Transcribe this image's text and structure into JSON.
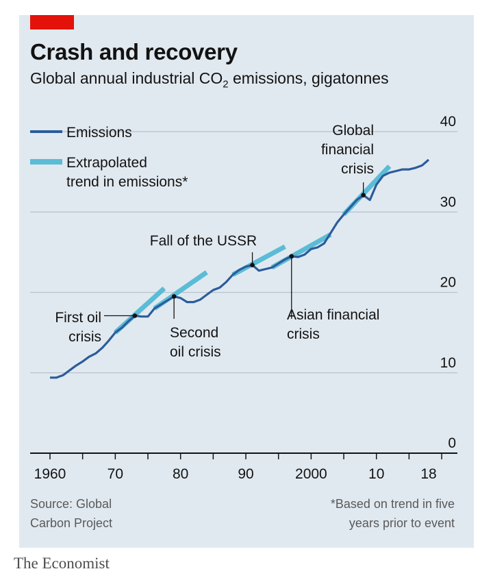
{
  "header": {
    "title": "Crash and recovery",
    "subtitle_main": "Global annual industrial CO",
    "subtitle_sub": "2",
    "subtitle_rest": " emissions, gigatonnes"
  },
  "colors": {
    "emissions": "#2b5c9c",
    "trend": "#5bbcd6",
    "accent": "#e3120b",
    "background": "#e1e9f0"
  },
  "chart_data": {
    "type": "line",
    "title": "Crash and recovery",
    "subtitle": "Global annual industrial CO2 emissions, gigatonnes",
    "xlim": [
      1960,
      2018
    ],
    "ylim": [
      0,
      40
    ],
    "x_ticks": [
      1960,
      1970,
      1980,
      1990,
      2000,
      2010,
      2018
    ],
    "x_tick_labels": [
      "1960",
      "70",
      "80",
      "90",
      "2000",
      "10",
      "18"
    ],
    "y_ticks": [
      0,
      10,
      20,
      30,
      40
    ],
    "y_tick_labels": [
      "0",
      "10",
      "20",
      "30",
      "40"
    ],
    "grid": "horizontal",
    "legend": "top-left",
    "legend_labels": {
      "emissions": "Emissions",
      "trend_line1": "Extrapolated",
      "trend_line2": "trend in emissions*"
    },
    "series": [
      {
        "name": "Emissions",
        "x": [
          1960,
          1961,
          1962,
          1963,
          1964,
          1965,
          1966,
          1967,
          1968,
          1969,
          1970,
          1971,
          1972,
          1973,
          1974,
          1975,
          1976,
          1977,
          1978,
          1979,
          1980,
          1981,
          1982,
          1983,
          1984,
          1985,
          1986,
          1987,
          1988,
          1989,
          1990,
          1991,
          1992,
          1993,
          1994,
          1995,
          1996,
          1997,
          1998,
          1999,
          2000,
          2001,
          2002,
          2003,
          2004,
          2005,
          2006,
          2007,
          2008,
          2009,
          2010,
          2011,
          2012,
          2013,
          2014,
          2015,
          2016,
          2017,
          2018
        ],
        "y": [
          9.4,
          9.4,
          9.7,
          10.3,
          10.9,
          11.4,
          12.0,
          12.4,
          13.1,
          14.0,
          15.0,
          15.6,
          16.4,
          17.1,
          17.0,
          17.0,
          18.0,
          18.5,
          19.0,
          19.5,
          19.3,
          18.8,
          18.8,
          19.1,
          19.7,
          20.3,
          20.6,
          21.3,
          22.2,
          22.8,
          23.2,
          23.4,
          22.7,
          22.9,
          23.1,
          23.6,
          24.1,
          24.5,
          24.4,
          24.7,
          25.4,
          25.6,
          26.1,
          27.4,
          28.7,
          29.7,
          30.6,
          31.5,
          32.1,
          31.5,
          33.4,
          34.5,
          34.9,
          35.1,
          35.3,
          35.3,
          35.5,
          35.8,
          36.5
        ]
      },
      {
        "name": "Extrapolated trend in emissions*",
        "segments": [
          {
            "x": [
              1970,
              1977.5
            ],
            "y": [
              15.0,
              20.5
            ]
          },
          {
            "x": [
              1976,
              1984
            ],
            "y": [
              18.0,
              22.5
            ]
          },
          {
            "x": [
              1988,
              1996
            ],
            "y": [
              22.2,
              25.7
            ]
          },
          {
            "x": [
              1994,
              2003
            ],
            "y": [
              23.1,
              27.2
            ]
          },
          {
            "x": [
              2005,
              2012
            ],
            "y": [
              29.7,
              35.7
            ]
          }
        ]
      }
    ],
    "event_markers": [
      {
        "x": 1973,
        "y": 17.1
      },
      {
        "x": 1979,
        "y": 19.5
      },
      {
        "x": 1991,
        "y": 23.4
      },
      {
        "x": 1997,
        "y": 24.5
      },
      {
        "x": 2008,
        "y": 32.1
      }
    ],
    "annotations": {
      "first_oil": [
        "First oil",
        "crisis"
      ],
      "second_oil": [
        "Second",
        "oil crisis"
      ],
      "ussr": [
        "Fall of the USSR"
      ],
      "asian": [
        "Asian financial",
        "crisis"
      ],
      "global": [
        "Global",
        "financial",
        "crisis"
      ]
    }
  },
  "footer": {
    "source": "Source: Global\nCarbon Project",
    "footnote": "*Based on trend in five\nyears prior to event",
    "brand": "The Economist"
  }
}
